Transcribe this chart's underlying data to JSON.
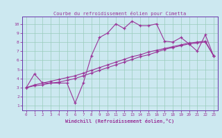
{
  "title": "Courbe du refroidissement éolien pour Cimetta",
  "xlabel": "Windchill (Refroidissement éolien,°C)",
  "bg_color": "#cce8f0",
  "grid_color": "#99ccbb",
  "line_color": "#993399",
  "spine_color": "#6633aa",
  "xlim": [
    -0.5,
    23.5
  ],
  "ylim": [
    0.5,
    10.8
  ],
  "xticks": [
    0,
    1,
    2,
    3,
    4,
    5,
    6,
    7,
    8,
    9,
    10,
    11,
    12,
    13,
    14,
    15,
    16,
    17,
    18,
    19,
    20,
    21,
    22,
    23
  ],
  "yticks": [
    1,
    2,
    3,
    4,
    5,
    6,
    7,
    8,
    9,
    10
  ],
  "line1_x": [
    0,
    1,
    2,
    3,
    4,
    5,
    6,
    7,
    8,
    9,
    10,
    11,
    12,
    13,
    14,
    15,
    16,
    17,
    18,
    19,
    20,
    21,
    22,
    23
  ],
  "line1_y": [
    3.0,
    4.5,
    3.5,
    3.5,
    3.5,
    3.5,
    1.3,
    3.5,
    6.5,
    8.5,
    9.0,
    10.0,
    9.5,
    10.3,
    9.8,
    9.8,
    10.0,
    8.1,
    8.0,
    8.5,
    7.8,
    7.0,
    8.8,
    6.5
  ],
  "line2_x": [
    0,
    1,
    2,
    3,
    4,
    5,
    6,
    7,
    8,
    9,
    10,
    11,
    12,
    13,
    14,
    15,
    16,
    17,
    18,
    19,
    20,
    21,
    22,
    23
  ],
  "line2_y": [
    3.0,
    3.3,
    3.5,
    3.7,
    3.9,
    4.1,
    4.3,
    4.6,
    4.9,
    5.2,
    5.5,
    5.8,
    6.1,
    6.4,
    6.6,
    6.9,
    7.1,
    7.3,
    7.5,
    7.7,
    7.9,
    8.0,
    8.1,
    6.5
  ],
  "line3_x": [
    0,
    1,
    2,
    3,
    4,
    5,
    6,
    7,
    8,
    9,
    10,
    11,
    12,
    13,
    14,
    15,
    16,
    17,
    18,
    19,
    20,
    21,
    22,
    23
  ],
  "line3_y": [
    3.0,
    3.2,
    3.3,
    3.5,
    3.6,
    3.8,
    4.0,
    4.3,
    4.6,
    4.9,
    5.2,
    5.5,
    5.8,
    6.1,
    6.4,
    6.6,
    6.9,
    7.2,
    7.4,
    7.6,
    7.8,
    7.9,
    8.0,
    6.5
  ]
}
